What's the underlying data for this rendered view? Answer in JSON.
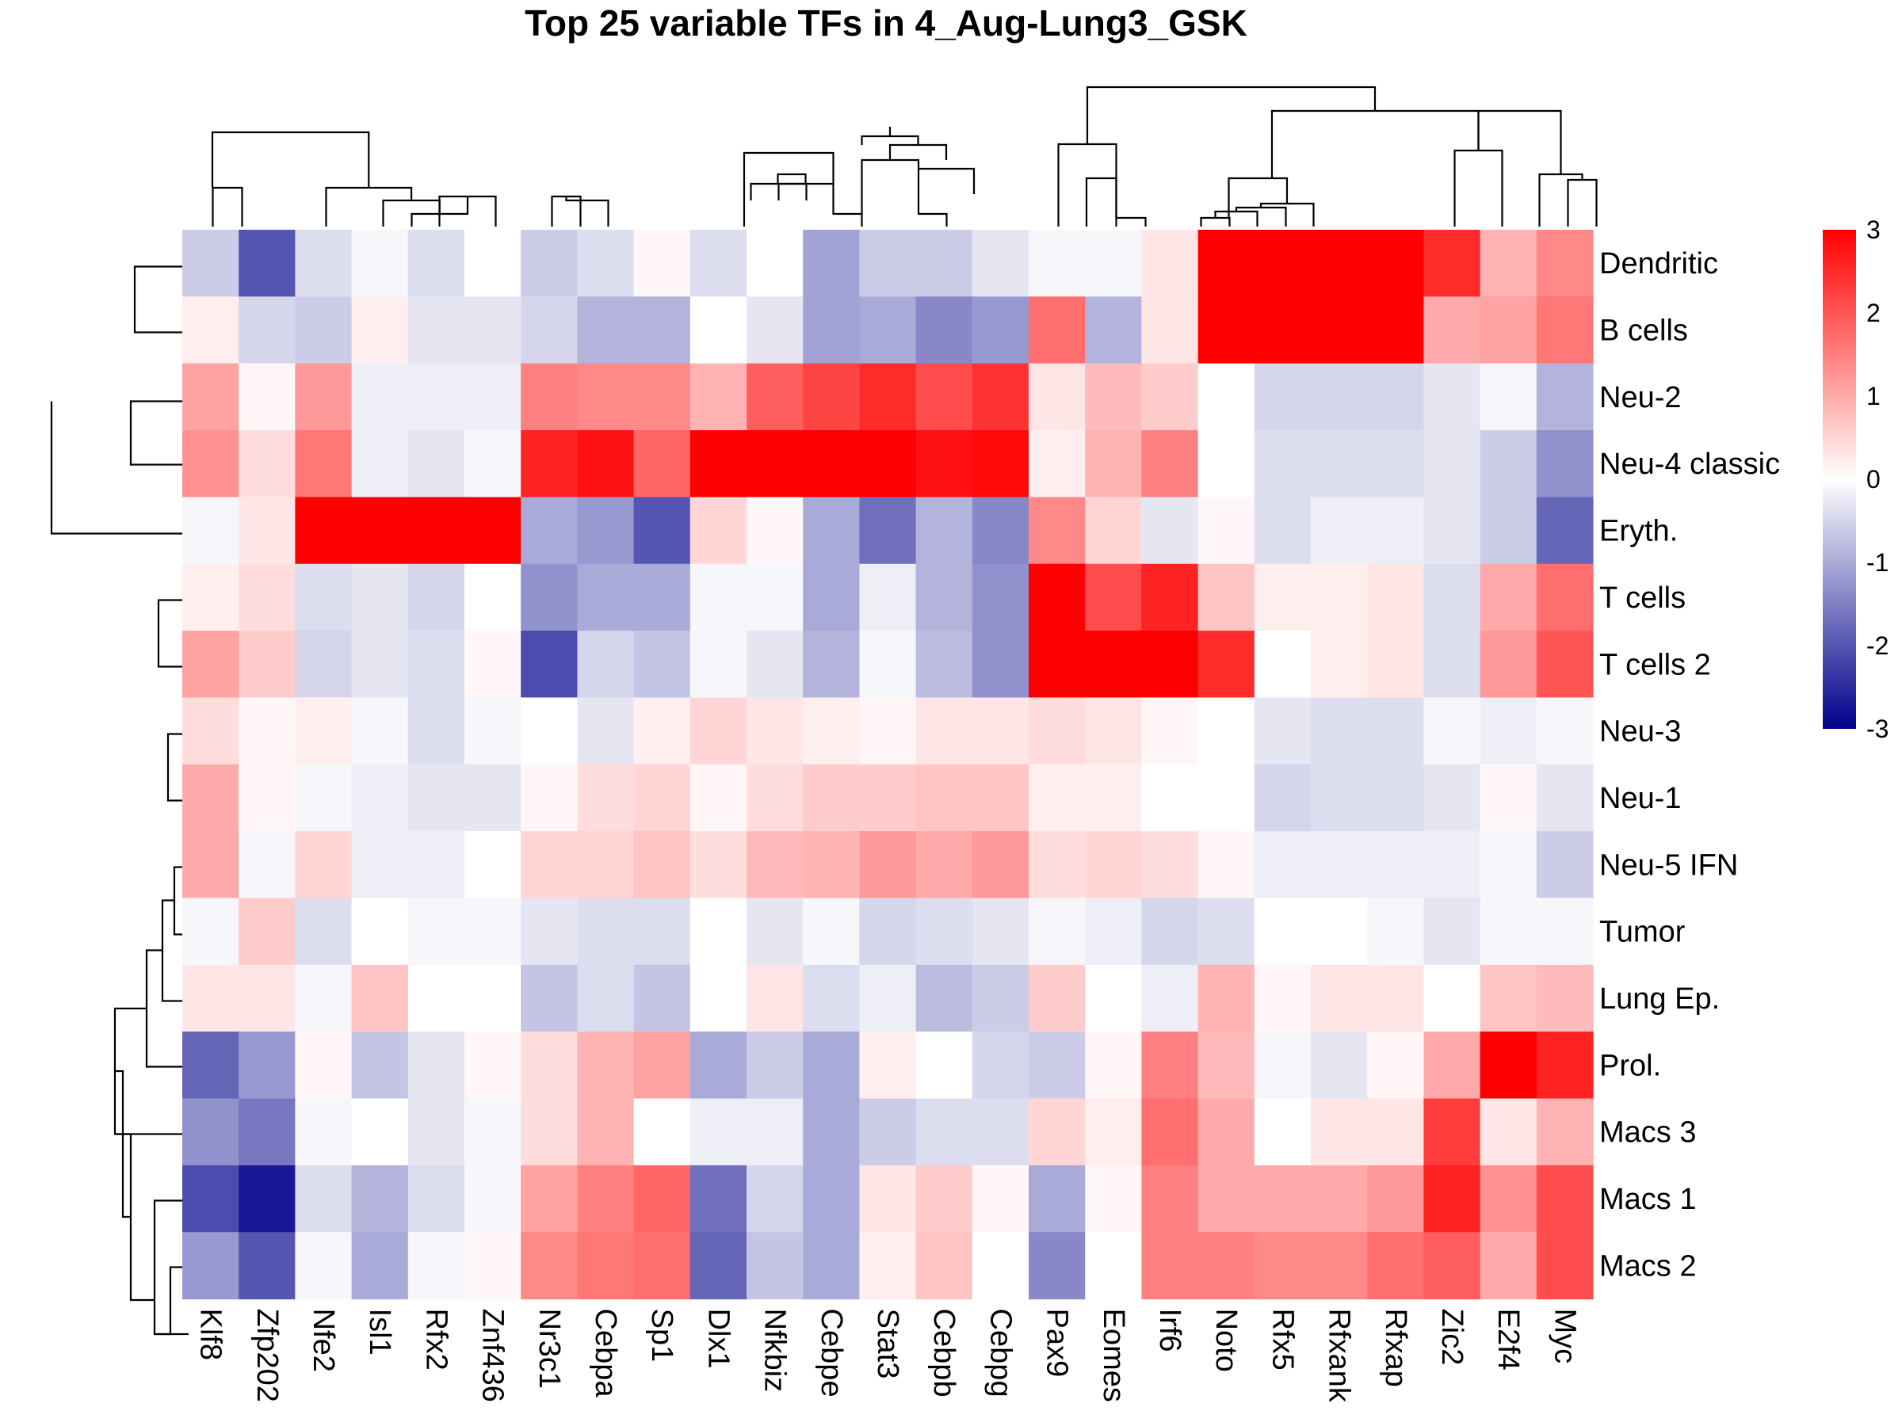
{
  "chart_data": {
    "type": "heatmap",
    "title": "Top 25 variable TFs in 4_Aug-Lung3_GSK",
    "columns": [
      "Klf8",
      "Zfp202",
      "Nfe2",
      "Isl1",
      "Rfx2",
      "Znf436",
      "Nr3c1",
      "Cebpa",
      "Sp1",
      "Dlx1",
      "Nfkbiz",
      "Cebpe",
      "Stat3",
      "Cebpb",
      "Cebpg",
      "Pax9",
      "Eomes",
      "Irf6",
      "Noto",
      "Rfx5",
      "Rfxank",
      "Rfxap",
      "Zic2",
      "E2f4",
      "Myc"
    ],
    "rows": [
      "Dendritic",
      "B cells",
      "Neu-2",
      "Neu-4 classic",
      "Eryth.",
      "T cells",
      "T cells 2",
      "Neu-3",
      "Neu-1",
      "Neu-5 IFN",
      "Tumor",
      "Lung Ep.",
      "Prol.",
      "Macs 3",
      "Macs 1",
      "Macs 2"
    ],
    "values": [
      [
        -0.6,
        -2.0,
        -0.4,
        -0.1,
        -0.4,
        0.0,
        -0.6,
        -0.4,
        0.1,
        -0.4,
        0.0,
        -1.1,
        -0.6,
        -0.6,
        -0.3,
        -0.1,
        -0.1,
        0.3,
        3.0,
        3.0,
        3.0,
        3.0,
        2.5,
        0.9,
        1.4
      ],
      [
        0.2,
        -0.5,
        -0.6,
        0.2,
        -0.3,
        -0.3,
        -0.5,
        -0.9,
        -0.9,
        0.0,
        -0.3,
        -1.1,
        -1.0,
        -1.4,
        -1.2,
        1.7,
        -0.9,
        0.3,
        3.0,
        3.0,
        3.0,
        3.0,
        1.0,
        1.1,
        1.6
      ],
      [
        1.1,
        0.1,
        1.2,
        -0.2,
        -0.2,
        -0.2,
        1.5,
        1.4,
        1.4,
        0.9,
        1.9,
        2.2,
        2.5,
        2.1,
        2.4,
        0.3,
        0.8,
        0.6,
        0.0,
        -0.5,
        -0.5,
        -0.5,
        -0.3,
        -0.1,
        -0.9
      ],
      [
        1.3,
        0.4,
        1.6,
        -0.2,
        -0.3,
        -0.1,
        2.6,
        2.8,
        1.8,
        3.0,
        3.0,
        3.0,
        3.0,
        2.8,
        2.9,
        0.2,
        0.9,
        1.5,
        0.0,
        -0.4,
        -0.4,
        -0.4,
        -0.3,
        -0.6,
        -1.3
      ],
      [
        -0.1,
        0.3,
        3.0,
        3.0,
        3.0,
        3.0,
        -1.0,
        -1.2,
        -2.0,
        0.5,
        0.1,
        -1.0,
        -1.7,
        -0.9,
        -1.4,
        1.4,
        0.5,
        -0.3,
        0.1,
        -0.4,
        -0.2,
        -0.2,
        -0.3,
        -0.6,
        -1.8
      ],
      [
        0.2,
        0.4,
        -0.4,
        -0.3,
        -0.5,
        0.0,
        -1.3,
        -1.0,
        -1.0,
        -0.1,
        -0.1,
        -1.0,
        -0.2,
        -0.9,
        -1.3,
        3.0,
        2.1,
        2.6,
        0.7,
        0.2,
        0.2,
        0.3,
        -0.4,
        1.0,
        1.7
      ],
      [
        1.1,
        0.6,
        -0.5,
        -0.3,
        -0.4,
        0.1,
        -2.1,
        -0.5,
        -0.7,
        -0.1,
        -0.3,
        -0.9,
        -0.1,
        -0.8,
        -1.3,
        3.0,
        3.0,
        3.0,
        2.5,
        0.0,
        0.2,
        0.3,
        -0.4,
        1.2,
        2.0
      ],
      [
        0.4,
        0.1,
        0.2,
        -0.1,
        -0.4,
        -0.1,
        0.0,
        -0.3,
        0.2,
        0.5,
        0.3,
        0.2,
        0.1,
        0.3,
        0.3,
        0.4,
        0.3,
        0.1,
        0.0,
        -0.3,
        -0.4,
        -0.4,
        -0.1,
        -0.2,
        -0.1
      ],
      [
        1.0,
        0.1,
        -0.1,
        -0.2,
        -0.3,
        -0.3,
        0.1,
        0.4,
        0.5,
        0.1,
        0.4,
        0.6,
        0.6,
        0.7,
        0.7,
        0.2,
        0.2,
        0.0,
        0.0,
        -0.5,
        -0.4,
        -0.4,
        -0.3,
        0.1,
        -0.3
      ],
      [
        1.0,
        -0.1,
        0.5,
        -0.2,
        -0.2,
        0.0,
        0.5,
        0.5,
        0.7,
        0.4,
        0.8,
        0.9,
        1.2,
        1.0,
        1.2,
        0.4,
        0.5,
        0.4,
        0.1,
        -0.2,
        -0.2,
        -0.2,
        -0.2,
        -0.1,
        -0.6
      ],
      [
        -0.1,
        0.6,
        -0.4,
        0.0,
        -0.1,
        -0.1,
        -0.3,
        -0.4,
        -0.4,
        0.0,
        -0.3,
        -0.1,
        -0.5,
        -0.4,
        -0.3,
        -0.1,
        -0.2,
        -0.5,
        -0.4,
        0.0,
        0.0,
        -0.1,
        -0.3,
        -0.1,
        -0.1
      ],
      [
        0.3,
        0.3,
        -0.1,
        0.7,
        0.0,
        0.0,
        -0.7,
        -0.4,
        -0.7,
        0.0,
        0.3,
        -0.4,
        -0.2,
        -0.8,
        -0.6,
        0.6,
        0.0,
        -0.2,
        0.9,
        0.1,
        0.3,
        0.3,
        0.0,
        0.7,
        0.8
      ],
      [
        -1.8,
        -1.2,
        0.1,
        -0.7,
        -0.3,
        0.1,
        0.4,
        0.9,
        1.1,
        -1.0,
        -0.6,
        -1.0,
        0.2,
        0.0,
        -0.5,
        -0.6,
        0.1,
        1.5,
        0.8,
        -0.1,
        -0.3,
        0.1,
        1.0,
        3.0,
        2.6
      ],
      [
        -1.3,
        -1.6,
        -0.1,
        0.0,
        -0.3,
        -0.1,
        0.4,
        0.9,
        0.0,
        -0.2,
        -0.2,
        -1.0,
        -0.6,
        -0.4,
        -0.4,
        0.5,
        0.2,
        1.7,
        1.0,
        0.0,
        0.3,
        0.3,
        2.3,
        0.3,
        0.9
      ],
      [
        -2.1,
        -2.7,
        -0.4,
        -0.9,
        -0.4,
        -0.1,
        1.1,
        1.5,
        1.8,
        -1.7,
        -0.5,
        -1.0,
        0.3,
        0.6,
        0.1,
        -1.0,
        0.1,
        1.5,
        1.0,
        1.0,
        1.0,
        1.2,
        2.6,
        1.3,
        2.1
      ],
      [
        -1.2,
        -2.0,
        -0.1,
        -1.0,
        -0.1,
        0.1,
        1.4,
        1.6,
        1.7,
        -1.8,
        -0.7,
        -1.0,
        0.2,
        0.7,
        0.0,
        -1.4,
        0.0,
        1.5,
        1.5,
        1.4,
        1.4,
        1.7,
        1.9,
        1.0,
        2.1
      ]
    ],
    "color_scale": {
      "min": -3,
      "max": 3,
      "low": "#00008B",
      "mid": "#FFFFFF",
      "high": "#FF0000"
    },
    "colorbar_ticks": [
      3,
      2,
      1,
      0,
      -1,
      -2,
      -3
    ],
    "legend_position": "right"
  }
}
